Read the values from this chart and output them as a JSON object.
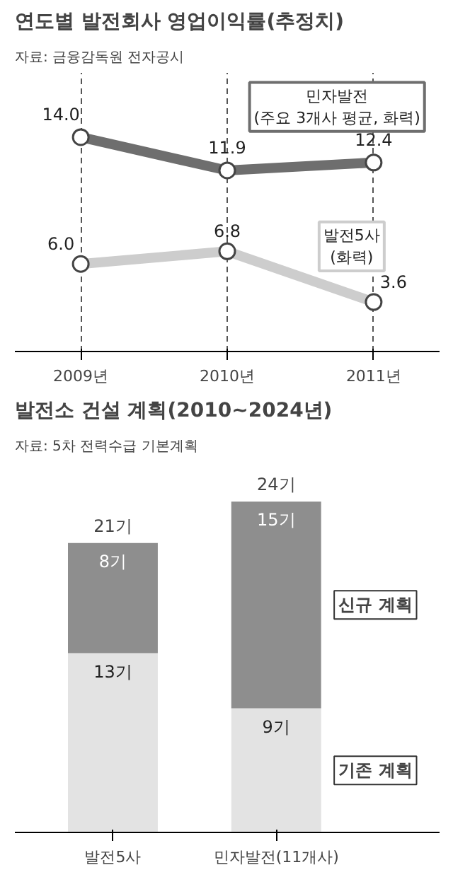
{
  "chart_data": [
    {
      "type": "line",
      "title": "연도별 발전회사 영업이익률(추정치)",
      "subtitle": "자료: 금융감독원 전자공시",
      "categories": [
        "2009년",
        "2010년",
        "2011년"
      ],
      "series": [
        {
          "name": "민자발전",
          "color": "#6e6e6e",
          "values": [
            14.0,
            11.9,
            12.4
          ],
          "value_labels": [
            "14.0",
            "11.9",
            "12.4"
          ]
        },
        {
          "name": "발전5사",
          "color": "#cdcdcd",
          "values": [
            6.0,
            6.8,
            3.6
          ],
          "value_labels": [
            "6.0",
            "6.8",
            "3.6"
          ]
        }
      ],
      "annotations": [
        "(주요 3개사 평균, 화력)",
        "(화력)"
      ],
      "marker": "circle",
      "grid": "x"
    },
    {
      "type": "bar",
      "stacked": true,
      "title": "발전소 건설 계획(2010~2024년)",
      "subtitle": "자료: 5차 전력수급 기본계획",
      "categories": [
        "발전5사",
        "민자발전(11개사)"
      ],
      "series": [
        {
          "name": "기존 계획",
          "color": "#e3e3e3",
          "values": [
            13,
            9
          ],
          "value_labels": [
            "13기",
            "9기"
          ]
        },
        {
          "name": "신규 계획",
          "color": "#8e8e8e",
          "values": [
            8,
            15
          ],
          "value_labels": [
            "8기",
            "15기"
          ]
        }
      ],
      "totals": [
        "21기",
        "24기"
      ]
    }
  ]
}
